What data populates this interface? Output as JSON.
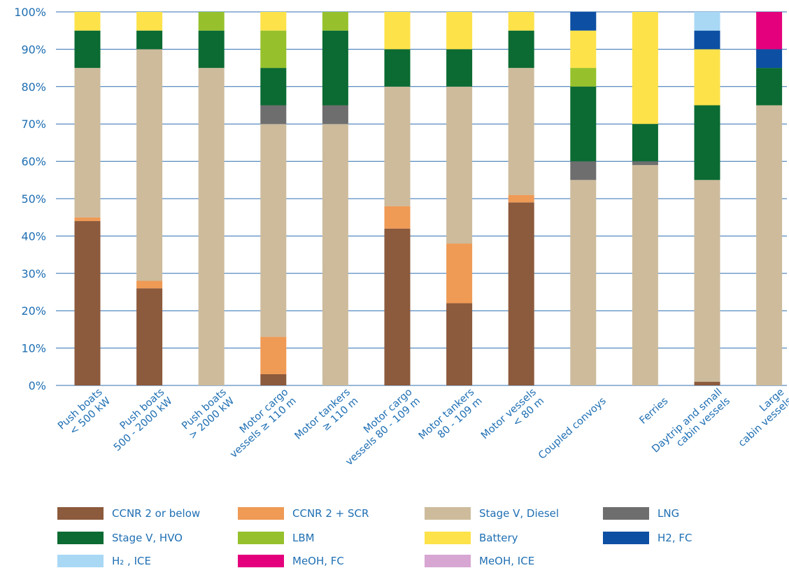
{
  "chart_data": {
    "type": "bar",
    "stacked": true,
    "categories": [
      [
        "Push boats",
        "< 500 kW"
      ],
      [
        "Push boats",
        "500 - 2000 kW"
      ],
      [
        "Push boats",
        "> 2000 kW"
      ],
      [
        "Motor cargo",
        "vessels ≥ 110 m"
      ],
      [
        "Motor tankers",
        "≥ 110 m"
      ],
      [
        "Motor cargo",
        "vessels 80 - 109 m"
      ],
      [
        "Motor tankers",
        "80 - 109 m"
      ],
      [
        "Motor vessels",
        "< 80 m"
      ],
      [
        "Coupled convoys"
      ],
      [
        "Ferries"
      ],
      [
        "Daytrip and small",
        "cabin vessels"
      ],
      [
        "Large",
        "cabin vessels"
      ]
    ],
    "ylim": [
      0,
      100
    ],
    "yticks": [
      "0%",
      "10%",
      "20%",
      "30%",
      "40%",
      "50%",
      "60%",
      "70%",
      "80%",
      "90%",
      "100%"
    ],
    "grid": true,
    "series": [
      {
        "name": "CCNR 2 or below",
        "color": "#8c5a3c",
        "values": [
          44,
          26,
          0,
          3,
          0,
          42,
          22,
          49,
          0,
          0,
          1,
          0
        ]
      },
      {
        "name": "CCNR 2 + SCR",
        "color": "#ef9a55",
        "values": [
          1,
          2,
          0,
          10,
          0,
          6,
          16,
          2,
          0,
          0,
          0,
          0
        ]
      },
      {
        "name": "Stage V, Diesel",
        "color": "#cdbb9c",
        "values": [
          40,
          62,
          85,
          57,
          70,
          32,
          42,
          34,
          55,
          59,
          54,
          75
        ]
      },
      {
        "name": "LNG",
        "color": "#6e6e6e",
        "values": [
          0,
          0,
          0,
          5,
          5,
          0,
          0,
          0,
          5,
          1,
          0,
          0
        ]
      },
      {
        "name": "Stage V, HVO",
        "color": "#0b6b32",
        "values": [
          10,
          5,
          10,
          10,
          20,
          10,
          10,
          10,
          20,
          10,
          20,
          10
        ]
      },
      {
        "name": "LBM",
        "color": "#96c12c",
        "values": [
          0,
          0,
          5,
          10,
          5,
          0,
          0,
          0,
          5,
          0,
          0,
          0
        ]
      },
      {
        "name": "Battery",
        "color": "#fde24a",
        "values": [
          5,
          5,
          0,
          5,
          0,
          10,
          10,
          5,
          10,
          30,
          15,
          0
        ]
      },
      {
        "name": "H2, FC",
        "color": "#0d4fa3",
        "values": [
          0,
          0,
          0,
          0,
          0,
          0,
          0,
          0,
          5,
          0,
          5,
          5
        ]
      },
      {
        "name": "H₂ , ICE",
        "color": "#a9d8f5",
        "values": [
          0,
          0,
          0,
          0,
          0,
          0,
          0,
          0,
          0,
          0,
          5,
          0
        ]
      },
      {
        "name": "MeOH, FC",
        "color": "#e4007c",
        "values": [
          0,
          0,
          0,
          0,
          0,
          0,
          0,
          0,
          0,
          0,
          0,
          10
        ]
      },
      {
        "name": "MeOH, ICE",
        "color": "#d7a6d2",
        "values": [
          0,
          0,
          0,
          0,
          0,
          0,
          0,
          0,
          0,
          0,
          0,
          0
        ]
      }
    ],
    "legend_position": "bottom",
    "colors": {
      "grid": "#2f6fb0",
      "text": "#1f6fb3"
    }
  }
}
